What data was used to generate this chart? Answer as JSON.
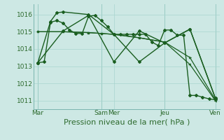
{
  "bg_color": "#cde8e4",
  "grid_color": "#a8d5cf",
  "line_color": "#1a5e20",
  "xlabel": "Pression niveau de la mer( hPa )",
  "xlabel_fontsize": 8,
  "ylim": [
    1010.5,
    1016.6
  ],
  "yticks": [
    1011,
    1012,
    1013,
    1014,
    1015,
    1016
  ],
  "ytick_fontsize": 6.5,
  "xtick_labels": [
    "Mar",
    "Sam",
    "Mer",
    "Jeu",
    "Ven"
  ],
  "xtick_positions": [
    0,
    60,
    72,
    120,
    168
  ],
  "vlines": [
    0,
    60,
    120,
    168
  ],
  "xlim": [
    -4,
    172
  ],
  "series": [
    {
      "x": [
        0,
        6,
        12,
        18,
        24,
        30,
        36,
        42,
        48,
        54,
        60,
        66,
        72,
        78,
        84,
        90,
        96,
        102,
        108,
        114,
        120,
        126,
        132,
        138,
        144,
        150,
        156,
        162,
        168
      ],
      "y": [
        1013.2,
        1013.25,
        1015.55,
        1015.65,
        1015.5,
        1015.1,
        1014.9,
        1014.9,
        1015.9,
        1015.95,
        1015.65,
        1015.3,
        1014.85,
        1014.85,
        1014.85,
        1014.85,
        1014.85,
        1014.85,
        1014.4,
        1014.2,
        1015.1,
        1015.1,
        1014.8,
        1014.8,
        1011.3,
        1011.3,
        1011.2,
        1011.1,
        1011.05
      ],
      "marker": "D",
      "markersize": 2.0,
      "linewidth": 1.0
    },
    {
      "x": [
        0,
        24,
        48,
        60,
        72,
        96,
        120,
        144,
        168
      ],
      "y": [
        1015.0,
        1015.0,
        1014.95,
        1014.9,
        1014.85,
        1014.65,
        1014.4,
        1013.5,
        1011.05
      ],
      "marker": "4",
      "markersize": 3.0,
      "linewidth": 0.9
    },
    {
      "x": [
        0,
        24,
        48,
        60,
        72,
        96,
        120,
        144,
        168
      ],
      "y": [
        1015.0,
        1015.0,
        1014.95,
        1014.9,
        1014.85,
        1014.65,
        1014.4,
        1013.1,
        1011.0
      ],
      "marker": "3",
      "markersize": 3.0,
      "linewidth": 0.9
    },
    {
      "x": [
        0,
        24,
        48,
        72,
        96,
        120,
        144,
        168
      ],
      "y": [
        1013.2,
        1015.05,
        1015.95,
        1013.25,
        1015.05,
        1014.35,
        1015.15,
        1011.15
      ],
      "marker": "D",
      "markersize": 2.0,
      "linewidth": 1.0
    },
    {
      "x": [
        0,
        12,
        18,
        24,
        48,
        72,
        96,
        120,
        144,
        168
      ],
      "y": [
        1013.2,
        1015.6,
        1016.1,
        1016.15,
        1016.0,
        1014.85,
        1013.25,
        1014.35,
        1015.15,
        1011.15
      ],
      "marker": "D",
      "markersize": 2.0,
      "linewidth": 1.0
    }
  ]
}
